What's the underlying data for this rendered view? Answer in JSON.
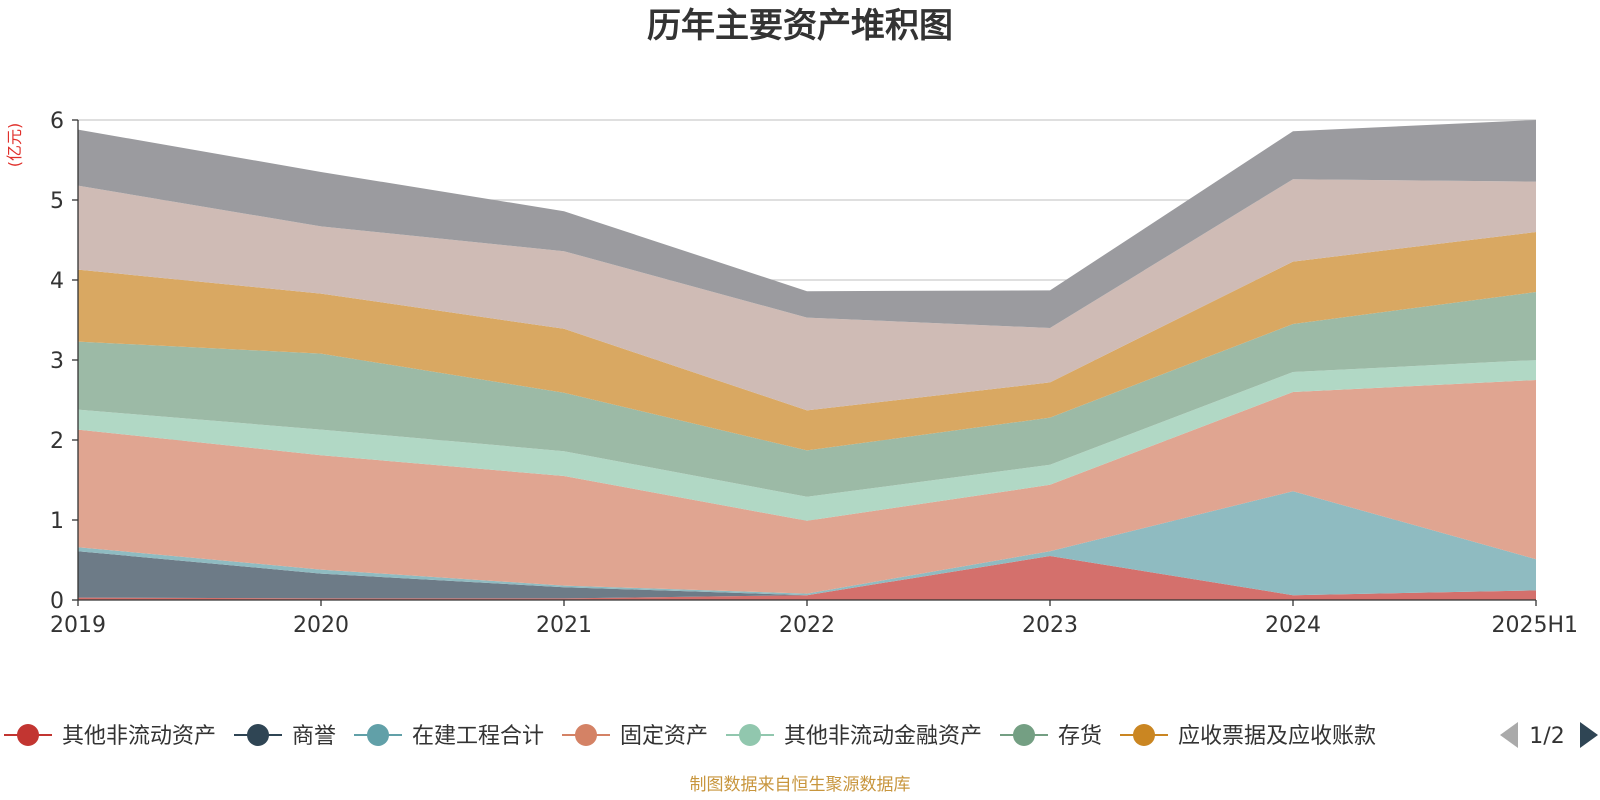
{
  "chart_data": {
    "type": "area",
    "stacked": true,
    "title": "历年主要资产堆积图",
    "y_unit": "(亿元)",
    "ylim": [
      0,
      6
    ],
    "y_ticks": [
      "0",
      "1",
      "2",
      "3",
      "4",
      "5",
      "6"
    ],
    "grid": true,
    "legend_placement": "bottom",
    "categories": [
      "2019",
      "2020",
      "2021",
      "2022",
      "2023",
      "2024",
      "2025H1"
    ],
    "series": [
      {
        "name": "其他非流动资产",
        "legend_color": "#c23531",
        "fill": "#d4706c",
        "values": [
          0.03,
          0.02,
          0.02,
          0.06,
          0.55,
          0.06,
          0.12
        ]
      },
      {
        "name": "商誉",
        "legend_color": "#2f4554",
        "fill": "#6d7b87",
        "values": [
          0.58,
          0.31,
          0.14,
          0.0,
          0.0,
          0.0,
          0.0
        ]
      },
      {
        "name": "在建工程合计",
        "legend_color": "#61a0a8",
        "fill": "#8fbbc1",
        "values": [
          0.05,
          0.05,
          0.02,
          0.02,
          0.06,
          1.3,
          0.39
        ]
      },
      {
        "name": "固定资产",
        "legend_color": "#d48265",
        "fill": "#e0a591",
        "values": [
          1.47,
          1.43,
          1.37,
          0.91,
          0.83,
          1.24,
          2.24
        ]
      },
      {
        "name": "其他非流动金融资产",
        "legend_color": "#91c7ae",
        "fill": "#b1d8c5",
        "values": [
          0.25,
          0.32,
          0.31,
          0.3,
          0.25,
          0.25,
          0.25
        ]
      },
      {
        "name": "存货",
        "legend_color": "#749f83",
        "fill": "#9cbaa6",
        "values": [
          0.85,
          0.95,
          0.73,
          0.58,
          0.59,
          0.6,
          0.85
        ]
      },
      {
        "name": "应收票据及应收账款",
        "legend_color": "#ca8622",
        "fill": "#d9a862",
        "values": [
          0.9,
          0.75,
          0.8,
          0.5,
          0.44,
          0.78,
          0.75
        ]
      },
      {
        "name": "",
        "fill": "#cfbbb5",
        "values": [
          1.05,
          0.84,
          0.97,
          1.16,
          0.68,
          1.03,
          0.63
        ]
      },
      {
        "name": "",
        "fill": "#9b9b9f",
        "values": [
          0.7,
          0.68,
          0.5,
          0.33,
          0.47,
          0.6,
          0.77
        ]
      }
    ]
  },
  "legend": {
    "pager_label": "1/2",
    "prev_color": "#aaaaaa",
    "next_color": "#2f4554"
  },
  "footer": {
    "source": "制图数据来自恒生聚源数据库"
  }
}
